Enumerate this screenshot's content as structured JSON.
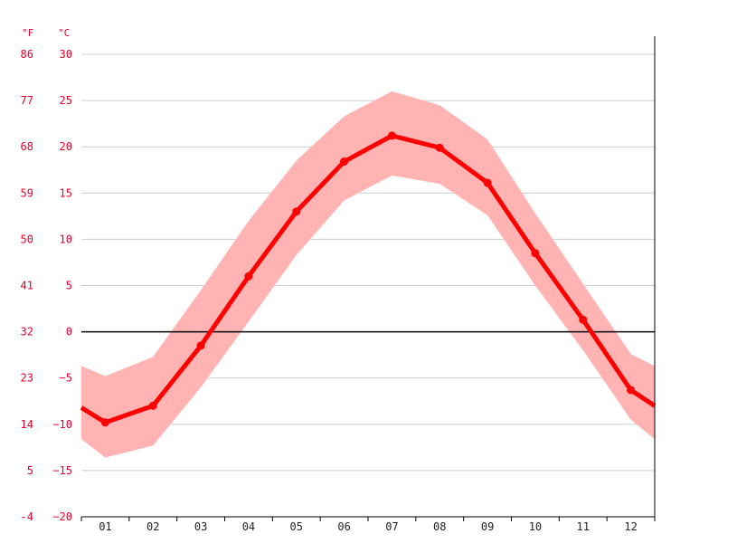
{
  "chart_data": {
    "type": "line",
    "units": {
      "fahrenheit": "°F",
      "celsius": "°C"
    },
    "x_categories": [
      "01",
      "02",
      "03",
      "04",
      "05",
      "06",
      "07",
      "08",
      "09",
      "10",
      "11",
      "12"
    ],
    "x_domain": [
      0.5,
      12.5
    ],
    "y_ticks_celsius": [
      30,
      25,
      20,
      15,
      10,
      5,
      0,
      -5,
      -10,
      -15,
      -20
    ],
    "y_ticks_fahrenheit": [
      "86",
      "77",
      "68",
      "59",
      "50",
      "41",
      "32",
      "23",
      "14",
      "5",
      "-4"
    ],
    "ylim": [
      -20,
      30
    ],
    "grid": true,
    "zero_line": true,
    "colors": {
      "line": "#ff0000",
      "band": "#ffb3b3",
      "grid": "#cccccc",
      "zero": "#000000",
      "axis_text": "#e8002a"
    },
    "series": [
      {
        "x": [
          0.5,
          1,
          2,
          3,
          4,
          5,
          6,
          7,
          8,
          9,
          10,
          11,
          12,
          12.5
        ],
        "values": [
          -8.2,
          -9.8,
          -8.0,
          -1.5,
          6.0,
          13.0,
          18.4,
          21.2,
          19.9,
          16.1,
          8.5,
          1.3,
          -6.3,
          -8.0
        ],
        "band_upper": [
          -3.7,
          -4.8,
          -2.7,
          4.5,
          12.0,
          18.5,
          23.3,
          26.0,
          24.5,
          20.8,
          12.8,
          5.2,
          -2.4,
          -3.7
        ],
        "band_lower": [
          -11.6,
          -13.6,
          -12.3,
          -6.0,
          1.1,
          8.3,
          14.2,
          16.9,
          16.0,
          12.6,
          5.0,
          -2.0,
          -9.5,
          -11.6
        ]
      }
    ]
  }
}
